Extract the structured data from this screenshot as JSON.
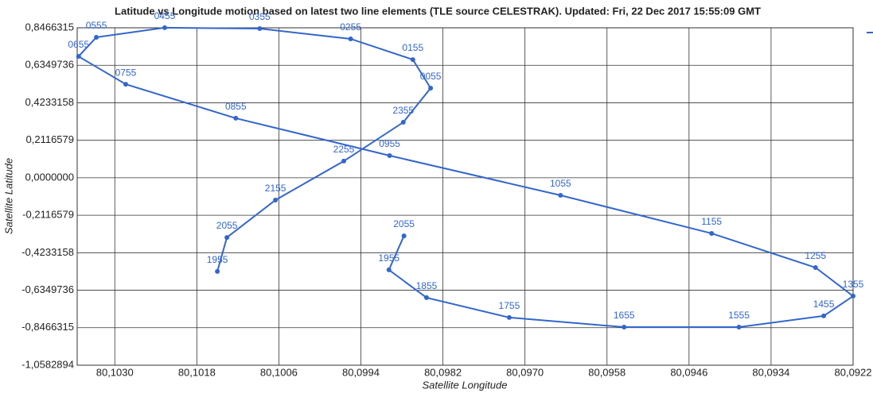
{
  "chart_data": {
    "type": "line",
    "title": "Latitude vs Longitude motion based on latest two line elements (TLE source CELESTRAK). Updated: Fri, 22 Dec 2017 15:55:09 GMT",
    "x_label": "Satellite Longitude",
    "y_label": "Satellite Latitude",
    "color": "#3366cc",
    "grid": true,
    "x_reversed": true,
    "point_labels": [
      "1955",
      "2055",
      "2155",
      "2255",
      "2355",
      "0055",
      "0155",
      "0255",
      "0355",
      "0455",
      "0555",
      "0655",
      "0755",
      "0855",
      "0955",
      "1055",
      "1155",
      "1255",
      "1355",
      "1455",
      "1555",
      "1655",
      "1755",
      "1855",
      "1955",
      "2055"
    ],
    "x": [
      80.1015,
      80.10136,
      80.10065,
      80.09965,
      80.09878,
      80.09838,
      80.09864,
      80.09955,
      80.10088,
      80.10227,
      80.10327,
      80.10353,
      80.10284,
      80.10123,
      80.09898,
      80.09648,
      80.09427,
      80.09275,
      80.0922,
      80.09263,
      80.09387,
      80.09555,
      80.09723,
      80.09844,
      80.09899,
      80.09877
    ],
    "values": [
      -0.529,
      -0.337,
      -0.126,
      0.094,
      0.313,
      0.506,
      0.667,
      0.784,
      0.842,
      0.847,
      0.793,
      0.685,
      0.528,
      0.336,
      0.125,
      -0.099,
      -0.314,
      -0.507,
      -0.668,
      -0.78,
      -0.843,
      -0.843,
      -0.789,
      -0.677,
      -0.52,
      -0.328
    ],
    "xlim": [
      80.10355,
      80.0922
    ],
    "xticks": [
      {
        "value": 80.103,
        "label": "80,1030"
      },
      {
        "value": 80.1018,
        "label": "80,1018"
      },
      {
        "value": 80.1006,
        "label": "80,1006"
      },
      {
        "value": 80.0994,
        "label": "80,0994"
      },
      {
        "value": 80.0982,
        "label": "80,0982"
      },
      {
        "value": 80.097,
        "label": "80,0970"
      },
      {
        "value": 80.0958,
        "label": "80,0958"
      },
      {
        "value": 80.0946,
        "label": "80,0946"
      },
      {
        "value": 80.0934,
        "label": "80,0934"
      },
      {
        "value": 80.0922,
        "label": "80,0922"
      }
    ],
    "ylim": [
      -1.0582894,
      0.8466315
    ],
    "yticks": [
      {
        "value": 0.8466315,
        "label": "0,8466315"
      },
      {
        "value": 0.6349736,
        "label": "0,6349736"
      },
      {
        "value": 0.4233158,
        "label": "0,4233158"
      },
      {
        "value": 0.2116579,
        "label": "0,2116579"
      },
      {
        "value": 0,
        "label": "0,0000000"
      },
      {
        "value": -0.2116579,
        "label": "-0,2116579"
      },
      {
        "value": -0.4233158,
        "label": "-0,4233158"
      },
      {
        "value": -0.6349736,
        "label": "-0,6349736"
      },
      {
        "value": -0.8466315,
        "label": "-0,8466315"
      },
      {
        "value": -1.0582894,
        "label": "-1,0582894"
      }
    ]
  }
}
